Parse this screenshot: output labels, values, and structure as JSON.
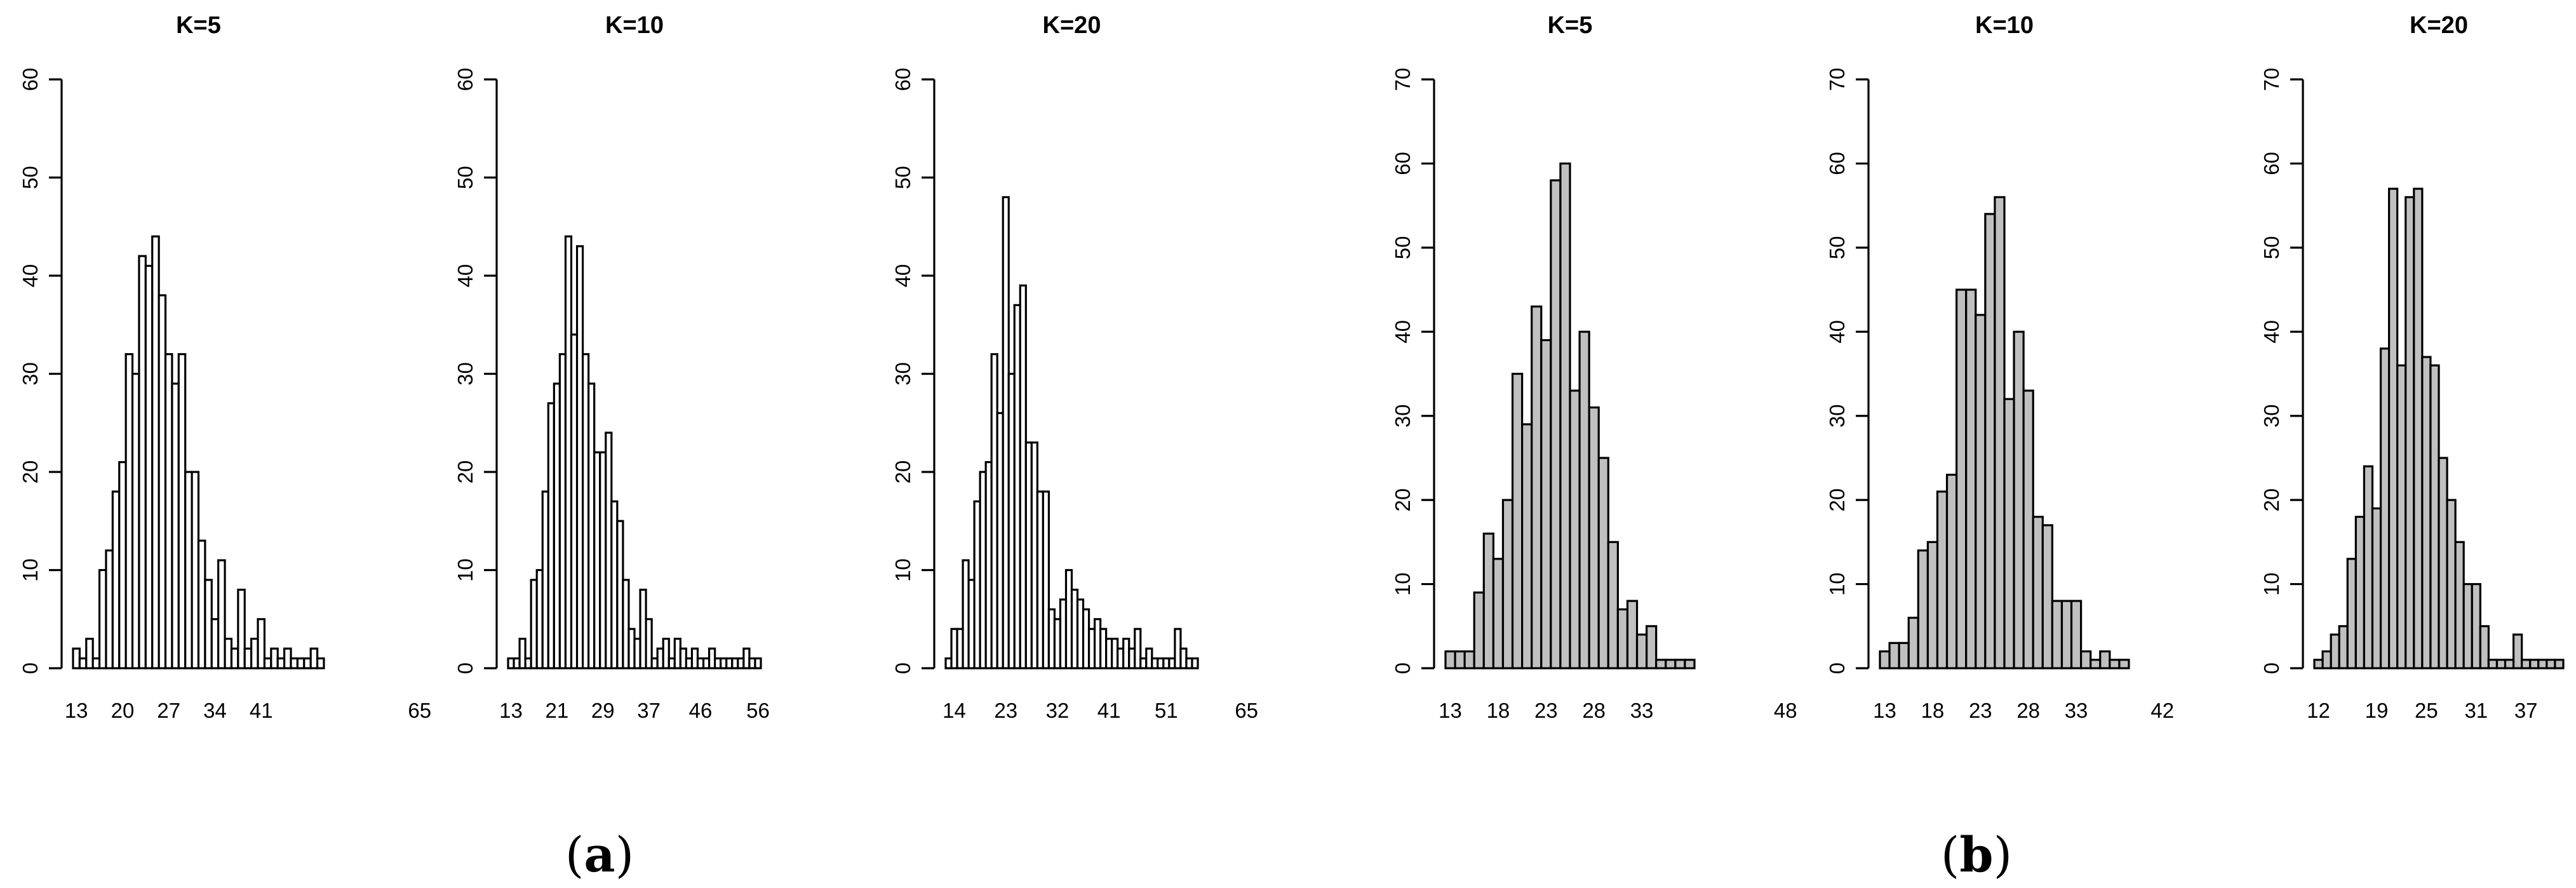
{
  "captions": [
    {
      "open": "(",
      "letter": "a",
      "close": ")"
    },
    {
      "open": "(",
      "letter": "b",
      "close": ")"
    }
  ],
  "colors": {
    "group_a_fill": "#ffffff",
    "group_b_fill": "#c0c0c0",
    "stroke": "#000000"
  },
  "chart_data": [
    {
      "type": "bar",
      "title": "K=5",
      "group": "a",
      "ylim": [
        0,
        60
      ],
      "yticks": [
        0,
        10,
        20,
        30,
        40,
        50,
        60
      ],
      "x_start": 13,
      "bin_width": 1,
      "xticks": [
        13,
        20,
        27,
        34,
        41,
        65
      ],
      "values": [
        2,
        1,
        3,
        1,
        10,
        12,
        18,
        21,
        32,
        30,
        42,
        41,
        44,
        38,
        32,
        29,
        32,
        20,
        20,
        13,
        9,
        5,
        11,
        3,
        2,
        8,
        2,
        3,
        5,
        1,
        2,
        1,
        2,
        1,
        1,
        1,
        2,
        1
      ],
      "xlabel": "",
      "ylabel": ""
    },
    {
      "type": "bar",
      "title": "K=10",
      "group": "a",
      "ylim": [
        0,
        60
      ],
      "yticks": [
        0,
        10,
        20,
        30,
        40,
        50,
        60
      ],
      "x_start": 13,
      "bin_width": 1,
      "xticks": [
        13,
        21,
        29,
        37,
        46,
        56
      ],
      "values": [
        1,
        1,
        3,
        1,
        9,
        10,
        18,
        27,
        29,
        32,
        44,
        34,
        43,
        32,
        29,
        22,
        22,
        24,
        17,
        15,
        9,
        4,
        3,
        8,
        5,
        1,
        2,
        3,
        1,
        3,
        2,
        1,
        2,
        1,
        1,
        2,
        1,
        1,
        1,
        1,
        1,
        2,
        1,
        1
      ],
      "xlabel": "",
      "ylabel": ""
    },
    {
      "type": "bar",
      "title": "K=20",
      "group": "a",
      "ylim": [
        0,
        60
      ],
      "yticks": [
        0,
        10,
        20,
        30,
        40,
        50,
        60
      ],
      "x_start": 13,
      "bin_width": 1,
      "xticks": [
        14,
        23,
        32,
        41,
        51,
        65
      ],
      "values": [
        1,
        4,
        4,
        11,
        9,
        17,
        20,
        21,
        32,
        26,
        48,
        30,
        37,
        39,
        23,
        23,
        18,
        18,
        6,
        5,
        7,
        10,
        8,
        7,
        6,
        4,
        5,
        4,
        3,
        3,
        2,
        3,
        2,
        4,
        1,
        2,
        1,
        1,
        1,
        1,
        4,
        2,
        1,
        1
      ],
      "xlabel": "",
      "ylabel": ""
    },
    {
      "type": "bar",
      "title": "K=5",
      "group": "b",
      "ylim": [
        0,
        70
      ],
      "yticks": [
        0,
        10,
        20,
        30,
        40,
        50,
        60,
        70
      ],
      "x_start": 13,
      "bin_width": 1,
      "xticks": [
        13,
        18,
        23,
        28,
        33,
        48
      ],
      "values": [
        2,
        2,
        2,
        9,
        16,
        13,
        20,
        35,
        29,
        43,
        39,
        58,
        60,
        33,
        40,
        31,
        25,
        15,
        7,
        8,
        4,
        5,
        1,
        1,
        1,
        1
      ],
      "xlabel": "",
      "ylabel": ""
    },
    {
      "type": "bar",
      "title": "K=10",
      "group": "b",
      "ylim": [
        0,
        70
      ],
      "yticks": [
        0,
        10,
        20,
        30,
        40,
        50,
        60,
        70
      ],
      "x_start": 13,
      "bin_width": 1,
      "xticks": [
        13,
        18,
        23,
        28,
        33,
        42
      ],
      "values": [
        2,
        3,
        3,
        6,
        14,
        15,
        21,
        23,
        45,
        45,
        42,
        54,
        56,
        32,
        40,
        33,
        18,
        17,
        8,
        8,
        8,
        2,
        1,
        2,
        1,
        1
      ],
      "xlabel": "",
      "ylabel": ""
    },
    {
      "type": "bar",
      "title": "K=20",
      "group": "b",
      "ylim": [
        0,
        70
      ],
      "yticks": [
        0,
        10,
        20,
        30,
        40,
        50,
        60,
        70
      ],
      "x_start": 12,
      "bin_width": 1,
      "xticks": [
        12,
        19,
        25,
        31,
        37
      ],
      "values": [
        1,
        2,
        4,
        5,
        13,
        18,
        24,
        19,
        38,
        57,
        36,
        56,
        57,
        37,
        36,
        25,
        20,
        15,
        10,
        10,
        5,
        1,
        1,
        1,
        4,
        1,
        1,
        1,
        1,
        1
      ],
      "xlabel": "",
      "ylabel": ""
    }
  ]
}
